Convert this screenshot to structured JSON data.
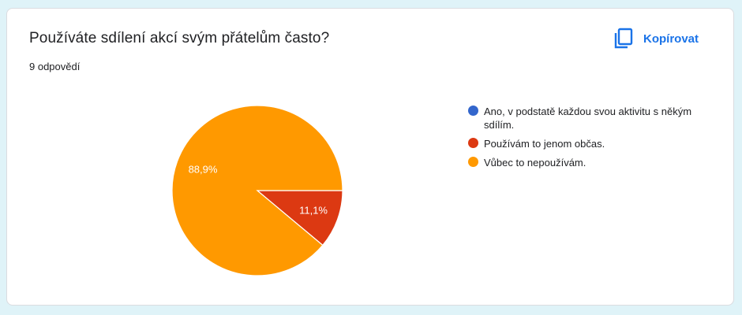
{
  "question": {
    "title": "Používáte sdílení akcí svým přátelům často?",
    "responses": "9 odpovědí"
  },
  "toolbar": {
    "copy_label": "Kopírovat",
    "copy_icon": "copy-icon",
    "accent_color": "#1a73e8"
  },
  "chart_data": {
    "type": "pie",
    "title": "Používáte sdílení akcí svým přátelům často?",
    "total_responses": 9,
    "slices": [
      {
        "label": "Ano, v podstatě každou svou aktivitu s někým sdílím.",
        "count": 0,
        "percent": 0,
        "percent_label": "",
        "color": "#3366cc"
      },
      {
        "label": "Používám to jenom občas.",
        "count": 1,
        "percent": 11.1,
        "percent_label": "11,1%",
        "color": "#dc3912"
      },
      {
        "label": "Vůbec to nepoužívám.",
        "count": 8,
        "percent": 88.9,
        "percent_label": "88,9%",
        "color": "#ff9900"
      }
    ],
    "legend_position": "right"
  }
}
